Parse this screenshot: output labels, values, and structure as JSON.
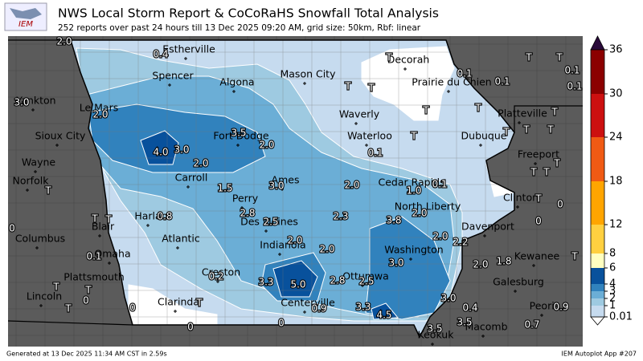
{
  "header": {
    "title": "NWS Local Storm Report & CoCoRaHS Snowfall Total Analysis",
    "subtitle": "252 reports over past 24 hours till 13 Dec 2025 09:20 AM, grid size: 50km, Rbf: linear",
    "logo": "IEM"
  },
  "colorbar": {
    "levels": [
      0.01,
      1,
      2,
      3,
      4,
      6,
      8,
      12,
      18,
      24,
      30,
      36
    ],
    "colors": [
      "#c6dbef",
      "#9ecae1",
      "#6baed6",
      "#3182bd",
      "#08519c",
      "#ffffc0",
      "#ffd040",
      "#ffa500",
      "#f05a14",
      "#cc1010",
      "#8b0000"
    ],
    "under_color": "#ffffff",
    "over_color": "#2a0a3a"
  },
  "cities": [
    "Estherville",
    "Spencer",
    "Algona",
    "Mason City",
    "Decorah",
    "Prairie du Chien",
    "Yankton",
    "Le Mars",
    "Sioux City",
    "Fort Dodge",
    "Waverly",
    "Waterloo",
    "Dubuque",
    "Platteville",
    "Freeport",
    "Wayne",
    "Norfolk",
    "Carroll",
    "Ames",
    "Cedar Rapids",
    "Clinton",
    "Perry",
    "North Liberty",
    "Harlan",
    "Blair",
    "Des Moines",
    "Davenport",
    "Columbus",
    "Atlantic",
    "Indianola",
    "Washington",
    "Kewanee",
    "Omaha",
    "Creston",
    "Ottumwa",
    "Plattsmouth",
    "Galesburg",
    "Lincoln",
    "Centerville",
    "Peoria",
    "Clarinda",
    "Keokuk",
    "Macomb"
  ],
  "reports": [
    "2.0",
    "0.4",
    "3.0",
    "2.0",
    "T",
    "T",
    "T",
    "T",
    "T",
    "T",
    "T",
    "0.1",
    "0.1",
    "0.1",
    "0.1",
    "T",
    "T",
    "T",
    "T",
    "T",
    "3.5",
    "2.0",
    "4.0",
    "3.0",
    "0.1",
    "2.0",
    "T",
    "T",
    "T",
    "T",
    "1.5",
    "3.0",
    "2.0",
    "1.0",
    "0.1",
    "T",
    "0",
    "2.8",
    "2.5",
    "2.3",
    "3.8",
    "2.0",
    "0.8",
    "T",
    "T",
    "0",
    "0",
    "2.0",
    "2.0",
    "2.0",
    "2.2",
    "0.1",
    "3.0",
    "2.0",
    "1.8",
    "T",
    "0.2",
    "3.3",
    "5.0",
    "2.8",
    "2.5",
    "T",
    "T",
    "0",
    "T",
    "0",
    "T",
    "0",
    "0",
    "0.9",
    "3.3",
    "3.0",
    "0.4",
    "4.5",
    "3.5",
    "3.5",
    "0.7",
    "0.9"
  ],
  "footer": {
    "left": "Generated at 13 Dec 2025 11:34 AM CST in 2.59s",
    "right": "IEM Autoplot App #207"
  }
}
